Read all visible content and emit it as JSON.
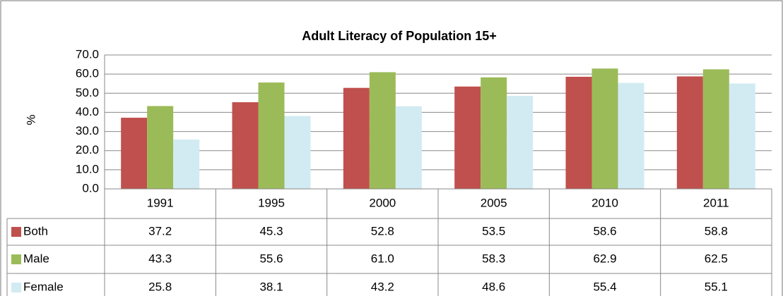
{
  "chart_data": {
    "type": "bar",
    "title": "Adult Literacy of Population 15+",
    "y_label": "%",
    "categories": [
      "1991",
      "1995",
      "2000",
      "2005",
      "2010",
      "2011"
    ],
    "series": [
      {
        "name": "Both",
        "color": "#c0504d",
        "values": [
          37.2,
          45.3,
          52.8,
          53.5,
          58.6,
          58.8
        ],
        "value_labels": [
          "37.2",
          "45.3",
          "52.8",
          "53.5",
          "58.6",
          "58.8"
        ]
      },
      {
        "name": "Male",
        "color": "#9bbb59",
        "values": [
          43.3,
          55.6,
          61,
          58.3,
          62.9,
          62.5
        ],
        "value_labels": [
          "43.3",
          "55.6",
          "61.0",
          "58.3",
          "62.9",
          "62.5"
        ]
      },
      {
        "name": "Female",
        "color": "#d2ebf2",
        "values": [
          25.8,
          38.1,
          43.2,
          48.6,
          55.4,
          55.1
        ],
        "value_labels": [
          "25.8",
          "38.1",
          "43.2",
          "48.6",
          "55.4",
          "55.1"
        ]
      }
    ],
    "ylim": [
      0,
      70
    ],
    "yticks": [
      {
        "value": 0,
        "label": "0.0"
      },
      {
        "value": 10,
        "label": "10.0"
      },
      {
        "value": 20,
        "label": "20.0"
      },
      {
        "value": 30,
        "label": "30.0"
      },
      {
        "value": 40,
        "label": "40.0"
      },
      {
        "value": 50,
        "label": "50.0"
      },
      {
        "value": 60,
        "label": "60.0"
      },
      {
        "value": 70,
        "label": "70.0"
      }
    ],
    "grid": true
  }
}
